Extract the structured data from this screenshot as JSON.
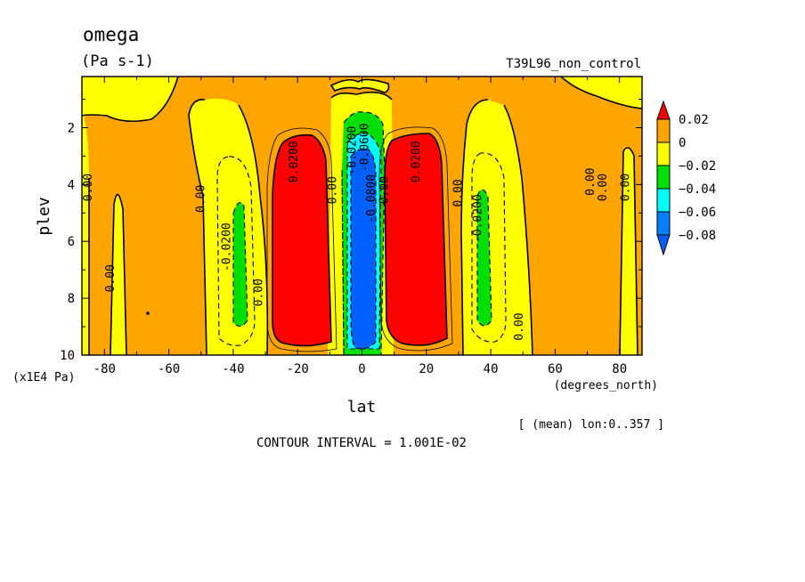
{
  "chart_data": {
    "type": "heatmap",
    "title": "omega",
    "units": "(Pa s-1)",
    "dataset_label": "T39L96_non_control",
    "xlabel": "lat",
    "x_units": "(degrees_north)",
    "ylabel": "plev",
    "y_units": "(x1E4 Pa)",
    "xlim": [
      -87,
      87
    ],
    "ylim": [
      10,
      0.2
    ],
    "x_ticks": [
      -80,
      -60,
      -40,
      -20,
      0,
      20,
      40,
      60,
      80
    ],
    "y_ticks": [
      2,
      4,
      6,
      8,
      10
    ],
    "averaging_note": "[ (mean) lon:0..357 ]",
    "contour_interval_text": "CONTOUR INTERVAL = 1.001E-02",
    "colorbar": {
      "levels": [
        0.02,
        0,
        -0.02,
        -0.04,
        -0.06,
        -0.08
      ],
      "level_labels": [
        "0.02",
        "0",
        "−0.02",
        "−0.04",
        "−0.06",
        "−0.08"
      ],
      "colors": [
        "#ff0000",
        "#ffa500",
        "#ffff00",
        "#00e000",
        "#00ffff",
        "#0080ff",
        "#0060ff"
      ],
      "extend": "both"
    },
    "contour_labels": [
      {
        "text": "0.00",
        "lat": -84,
        "plev": 4.1
      },
      {
        "text": "0.00",
        "lat": -77,
        "plev": 7.3
      },
      {
        "text": "0.00",
        "lat": -49,
        "plev": 4.5
      },
      {
        "text": "-0.0200",
        "lat": -41,
        "plev": 6.2
      },
      {
        "text": "0.00",
        "lat": -31,
        "plev": 7.8
      },
      {
        "text": "0.0200",
        "lat": -20,
        "plev": 3.2
      },
      {
        "text": "0.00",
        "lat": -8,
        "plev": 4.2
      },
      {
        "text": "-0.0200",
        "lat": -2,
        "plev": 2.8
      },
      {
        "text": "-0.0600",
        "lat": 2,
        "plev": 2.7
      },
      {
        "text": "-0.0800",
        "lat": 4,
        "plev": 4.5
      },
      {
        "text": "0.00",
        "lat": 8,
        "plev": 4.2
      },
      {
        "text": "0.0200",
        "lat": 18,
        "plev": 3.2
      },
      {
        "text": "0.00",
        "lat": 31,
        "plev": 4.3
      },
      {
        "text": "-0.0200",
        "lat": 37,
        "plev": 5.2
      },
      {
        "text": "0.00",
        "lat": 50,
        "plev": 9.0
      },
      {
        "text": "0.00",
        "lat": 72,
        "plev": 3.9
      },
      {
        "text": "0.00",
        "lat": 76,
        "plev": 4.1
      },
      {
        "text": "0.00",
        "lat": 83,
        "plev": 4.1
      }
    ]
  }
}
